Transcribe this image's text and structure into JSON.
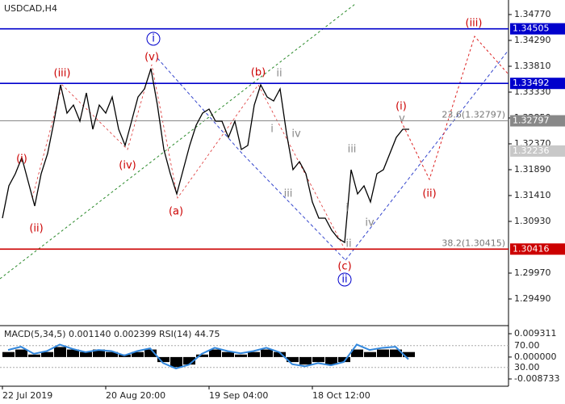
{
  "chart_data": {
    "type": "line",
    "title": "USDCAD,H4",
    "color": "#000000",
    "x": [
      0,
      2,
      4,
      6,
      8,
      10,
      12,
      14,
      16,
      18,
      20,
      22,
      24,
      26,
      28,
      30,
      32,
      34,
      36,
      38,
      40,
      42,
      44,
      46,
      48,
      50,
      52,
      54,
      56,
      58,
      60,
      62,
      64,
      66,
      68,
      70,
      72,
      74,
      76,
      78,
      80,
      82,
      84,
      86,
      88,
      90,
      92,
      94,
      96,
      98,
      100,
      102,
      104,
      106,
      108,
      110,
      112,
      114,
      116,
      118,
      120,
      122,
      124,
      126
    ],
    "values": [
      1.3099,
      1.3159,
      1.31815,
      1.32115,
      1.31665,
      1.31215,
      1.31815,
      1.3219,
      1.3279,
      1.33465,
      1.3294,
      1.3309,
      1.3279,
      1.33315,
      1.3264,
      1.3309,
      1.3294,
      1.3324,
      1.3264,
      1.3234,
      1.3279,
      1.3324,
      1.3339,
      1.33765,
      1.3309,
      1.32265,
      1.31815,
      1.3144,
      1.3189,
      1.3234,
      1.32715,
      1.3294,
      1.33015,
      1.3279,
      1.3279,
      1.3249,
      1.3279,
      1.32265,
      1.3234,
      1.3309,
      1.33465,
      1.3324,
      1.33165,
      1.3339,
      1.32565,
      1.3189,
      1.3204,
      1.31815,
      1.3129,
      1.3099,
      1.3099,
      1.30765,
      1.30615,
      1.3054,
      1.3189,
      1.3144,
      1.3159,
      1.3129,
      1.31815,
      1.3189,
      1.3219,
      1.3249,
      1.3264,
      1.3264
    ],
    "xlim": [
      -0.75,
      156.75
    ],
    "xticks": [
      {
        "value": 0,
        "label": "22 Jul 2019"
      },
      {
        "value": 32,
        "label": "20 Aug 20:00"
      },
      {
        "value": 64,
        "label": "19 Sep 04:00"
      },
      {
        "value": 96,
        "label": "18 Oct 12:00"
      }
    ],
    "ylim": [
      1.2904,
      1.3504
    ],
    "yticks": [
      {
        "value": 1.3477,
        "label": "1.34770"
      },
      {
        "value": 1.3429,
        "label": "1.34290"
      },
      {
        "value": 1.3381,
        "label": "1.33810"
      },
      {
        "value": 1.3333,
        "label": "1.33330"
      },
      {
        "value": 1.3285,
        "label": "1.32850"
      },
      {
        "value": 1.3237,
        "label": "1.32370"
      },
      {
        "value": 1.3189,
        "label": "1.31890"
      },
      {
        "value": 1.3141,
        "label": "1.31410"
      },
      {
        "value": 1.3093,
        "label": "1.30930"
      },
      {
        "value": 1.2997,
        "label": "1.29970"
      },
      {
        "value": 1.2949,
        "label": "1.29490"
      }
    ],
    "levels": [
      {
        "value": 1.34505,
        "color": "#0000cc",
        "line": true
      },
      {
        "value": 1.33492,
        "color": "#0000cc",
        "line": true
      },
      {
        "value": 1.32797,
        "color": "#888888",
        "line": true,
        "text": "23.6(1.32797)",
        "boxed": false
      },
      {
        "value": 1.32236,
        "color": "#c8c8c8",
        "line": false
      },
      {
        "value": 1.30416,
        "color": "#cc0000",
        "line": true,
        "text": "38.2(1.30415)"
      }
    ],
    "annotations": [
      {
        "text": "(i)",
        "color": "#cc0000"
      },
      {
        "text": "(ii)",
        "color": "#cc0000"
      },
      {
        "text": "(iii)",
        "color": "#cc0000"
      },
      {
        "text": "(iv)",
        "color": "#cc0000"
      },
      {
        "text": "(v)",
        "color": "#cc0000"
      },
      {
        "text": "i",
        "color": "#0000cc",
        "circled": true
      },
      {
        "text": "(a)",
        "color": "#cc0000"
      },
      {
        "text": "(b)",
        "color": "#cc0000"
      },
      {
        "text": "ii",
        "color": "#888888"
      },
      {
        "text": "i",
        "color": "#888888"
      },
      {
        "text": "iv",
        "color": "#888888"
      },
      {
        "text": "iii",
        "color": "#888888"
      },
      {
        "text": "ii",
        "color": "#888888"
      },
      {
        "text": "(c)",
        "color": "#cc0000"
      },
      {
        "text": "ii",
        "color": "#0000cc",
        "circled": true
      },
      {
        "text": "iii",
        "color": "#888888"
      },
      {
        "text": "i",
        "color": "#888888"
      },
      {
        "text": "iv",
        "color": "#888888"
      },
      {
        "text": "(i)",
        "color": "#cc0000"
      },
      {
        "text": "v",
        "color": "#888888"
      },
      {
        "text": "(ii)",
        "color": "#cc0000"
      },
      {
        "text": "(iii)",
        "color": "#cc0000"
      }
    ],
    "indicator": {
      "title": "MACD(5,34,5) 0.001140 0.002399 RSI(14) 44.75",
      "x": [
        0,
        4,
        8,
        12,
        16,
        20,
        24,
        28,
        32,
        36,
        40,
        44,
        48,
        52,
        56,
        60,
        64,
        68,
        72,
        76,
        80,
        84,
        88,
        92,
        96,
        100,
        104,
        108,
        112,
        116,
        120,
        124
      ],
      "macd": [
        0.002,
        0.003,
        0.001,
        0.002,
        0.004,
        0.003,
        0.002,
        0.003,
        0.002,
        0.001,
        0.002,
        0.003,
        -0.002,
        -0.004,
        -0.003,
        0.001,
        0.003,
        0.002,
        0.001,
        0.002,
        0.003,
        0.002,
        -0.002,
        -0.003,
        -0.002,
        -0.003,
        -0.002,
        0.003,
        0.002,
        0.003,
        0.003,
        0.002
      ],
      "macd_color": "#000000",
      "rsi": [
        62,
        68,
        55,
        60,
        72,
        64,
        58,
        62,
        60,
        52,
        60,
        65,
        38,
        28,
        35,
        55,
        66,
        60,
        56,
        60,
        66,
        58,
        36,
        32,
        38,
        34,
        40,
        72,
        62,
        66,
        68,
        45
      ],
      "rsi_color": "#3388dd",
      "macd_ylim": [
        -0.008733,
        0.009311
      ],
      "macd_yticks": [
        0.009311,
        {
          "value": 0,
          "label": "0.000000"
        },
        -0.008733
      ],
      "rsi_ylim": [
        0,
        100
      ],
      "rsi_yticks": [
        {
          "value": 70,
          "label": "70.00"
        },
        {
          "value": 30,
          "label": "30.00"
        }
      ]
    }
  }
}
